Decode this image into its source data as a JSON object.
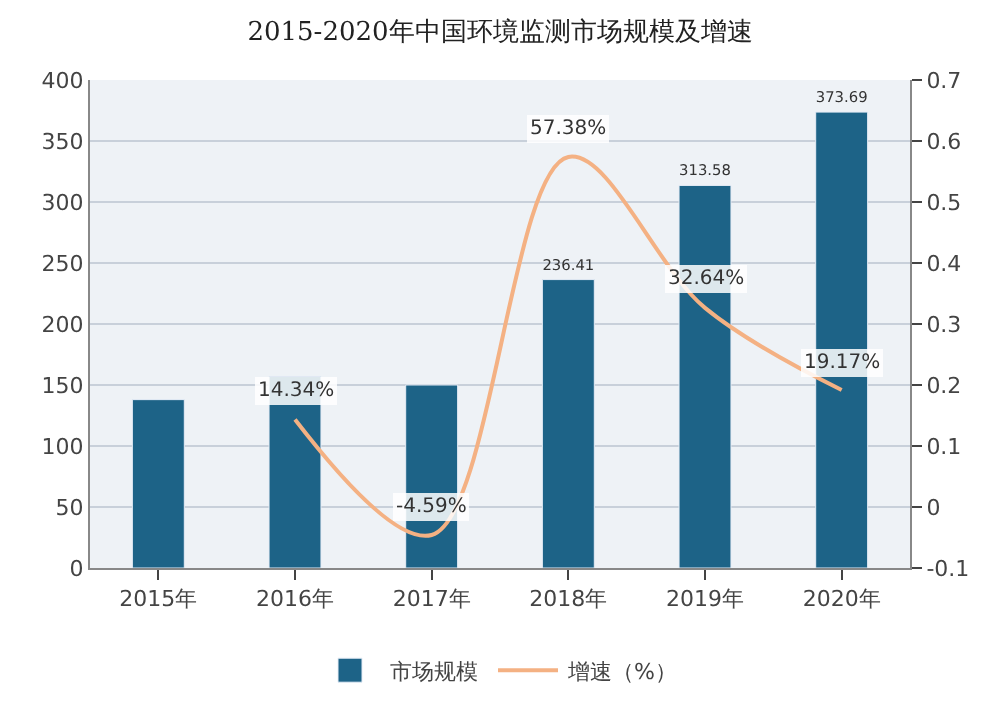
{
  "chart_data": {
    "type": "bar",
    "title": "2015-2020年中国环境监测市场规模及增速",
    "categories": [
      "2015年",
      "2016年",
      "2017年",
      "2018年",
      "2019年",
      "2020年"
    ],
    "series": [
      {
        "name": "市场规模",
        "color": "#1d6387",
        "values": [
          138,
          157,
          150,
          236.41,
          313.58,
          373.69
        ],
        "value_labels": [
          null,
          null,
          null,
          "236.41",
          "313.58",
          "373.69"
        ]
      },
      {
        "name": "增速（%）",
        "type": "line",
        "axis": "y2",
        "color": "#f4b183",
        "values": [
          null,
          0.1434,
          -0.0459,
          0.5738,
          0.3264,
          0.1917
        ],
        "value_labels": [
          null,
          "14.34%",
          "-4.59%",
          "57.38%",
          "32.64%",
          "19.17%"
        ]
      }
    ],
    "ylim": [
      0,
      400
    ],
    "yticks": [
      0,
      50,
      100,
      150,
      200,
      250,
      300,
      350,
      400
    ],
    "y2lim": [
      -0.1,
      0.7
    ],
    "y2ticks": [
      {
        "value": -0.1,
        "label": "-0.1"
      },
      0,
      0.1,
      0.2,
      0.3,
      0.4,
      0.5,
      0.6,
      0.7
    ],
    "grid": "y",
    "legend": "bottom",
    "marker": "none",
    "line_style": "solid"
  }
}
